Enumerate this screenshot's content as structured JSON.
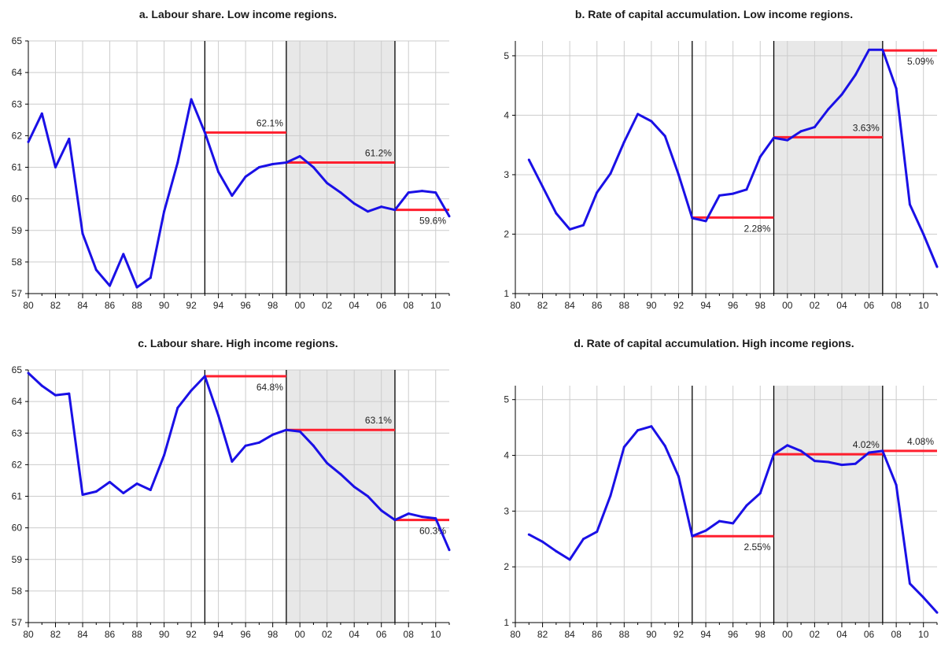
{
  "colors": {
    "line": "#1a10e6",
    "mean": "#ff1f2e",
    "shade": "#e8e8e8",
    "grid": "#cccccc",
    "axis": "#000000"
  },
  "x_tick_labels": [
    "80",
    "82",
    "84",
    "86",
    "88",
    "90",
    "92",
    "94",
    "96",
    "98",
    "00",
    "02",
    "04",
    "06",
    "08",
    "10"
  ],
  "chart_data": [
    {
      "type": "line",
      "title": "a. Labour share. Low income regions.",
      "xlim": [
        1980,
        2011
      ],
      "ylim": [
        57,
        65
      ],
      "yticks": [
        57,
        58,
        59,
        60,
        61,
        62,
        63,
        64,
        65
      ],
      "x": [
        1980,
        1981,
        1982,
        1983,
        1984,
        1985,
        1986,
        1987,
        1988,
        1989,
        1990,
        1991,
        1992,
        1993,
        1994,
        1995,
        1996,
        1997,
        1998,
        1999,
        2000,
        2001,
        2002,
        2003,
        2004,
        2005,
        2006,
        2007,
        2008,
        2009,
        2010,
        2011
      ],
      "values": [
        61.8,
        62.7,
        61.0,
        61.9,
        58.9,
        57.75,
        57.25,
        58.25,
        57.2,
        57.5,
        59.6,
        61.15,
        63.15,
        62.1,
        60.85,
        60.1,
        60.7,
        61.0,
        61.1,
        61.15,
        61.35,
        61.0,
        60.5,
        60.2,
        59.85,
        59.6,
        59.75,
        59.65,
        60.2,
        60.25,
        60.2,
        59.45
      ],
      "vlines": [
        1993,
        1999,
        2007
      ],
      "shaded": [
        1999,
        2007
      ],
      "means": [
        {
          "x0": 1993,
          "x1": 1999,
          "y": 62.1,
          "label": "62.1%",
          "label_pos": "above"
        },
        {
          "x0": 1999,
          "x1": 2007,
          "y": 61.15,
          "label": "61.2%",
          "label_pos": "above"
        },
        {
          "x0": 2007,
          "x1": 2011,
          "y": 59.65,
          "label": "59.6%",
          "label_pos": "below"
        }
      ],
      "grid": true
    },
    {
      "type": "line",
      "title": "b. Rate of capital accumulation. Low income regions.",
      "xlim": [
        1980,
        2011
      ],
      "ylim": [
        1,
        5.25
      ],
      "yticks": [
        1,
        2,
        3,
        4,
        5
      ],
      "x": [
        1981,
        1982,
        1983,
        1984,
        1985,
        1986,
        1987,
        1988,
        1989,
        1990,
        1991,
        1992,
        1993,
        1994,
        1995,
        1996,
        1997,
        1998,
        1999,
        2000,
        2001,
        2002,
        2003,
        2004,
        2005,
        2006,
        2007,
        2008,
        2009,
        2010,
        2011
      ],
      "values": [
        3.25,
        2.8,
        2.35,
        2.08,
        2.15,
        2.7,
        3.02,
        3.55,
        4.02,
        3.9,
        3.65,
        3.0,
        2.27,
        2.22,
        2.65,
        2.68,
        2.75,
        3.3,
        3.62,
        3.58,
        3.73,
        3.8,
        4.1,
        4.35,
        4.68,
        5.1,
        5.1,
        4.45,
        2.5,
        2.0,
        1.45
      ],
      "vlines": [
        1993,
        1999,
        2007
      ],
      "shaded": [
        1999,
        2007
      ],
      "means": [
        {
          "x0": 1993,
          "x1": 1999,
          "y": 2.28,
          "label": "2.28%",
          "label_pos": "below"
        },
        {
          "x0": 1999,
          "x1": 2007,
          "y": 3.63,
          "label": "3.63%",
          "label_pos": "above"
        },
        {
          "x0": 2007,
          "x1": 2011,
          "y": 5.09,
          "label": "5.09%",
          "label_pos": "below"
        }
      ],
      "grid": true
    },
    {
      "type": "line",
      "title": "c. Labour share. High income regions.",
      "xlim": [
        1980,
        2011
      ],
      "ylim": [
        57,
        65
      ],
      "yticks": [
        57,
        58,
        59,
        60,
        61,
        62,
        63,
        64,
        65
      ],
      "x": [
        1980,
        1981,
        1982,
        1983,
        1984,
        1985,
        1986,
        1987,
        1988,
        1989,
        1990,
        1991,
        1992,
        1993,
        1994,
        1995,
        1996,
        1997,
        1998,
        1999,
        2000,
        2001,
        2002,
        2003,
        2004,
        2005,
        2006,
        2007,
        2008,
        2009,
        2010,
        2011
      ],
      "values": [
        64.9,
        64.5,
        64.2,
        64.25,
        61.05,
        61.15,
        61.45,
        61.1,
        61.4,
        61.2,
        62.3,
        63.8,
        64.35,
        64.8,
        63.55,
        62.1,
        62.6,
        62.7,
        62.95,
        63.1,
        63.05,
        62.6,
        62.05,
        61.7,
        61.3,
        61.0,
        60.55,
        60.25,
        60.45,
        60.35,
        60.3,
        59.3
      ],
      "vlines": [
        1993,
        1999,
        2007
      ],
      "shaded": [
        1999,
        2007
      ],
      "means": [
        {
          "x0": 1993,
          "x1": 1999,
          "y": 64.8,
          "label": "64.8%",
          "label_pos": "below"
        },
        {
          "x0": 1999,
          "x1": 2007,
          "y": 63.1,
          "label": "63.1%",
          "label_pos": "above"
        },
        {
          "x0": 2007,
          "x1": 2011,
          "y": 60.25,
          "label": "60.3%",
          "label_pos": "below"
        }
      ],
      "grid": true
    },
    {
      "type": "line",
      "title": "d. Rate of capital accumulation. High income regions.",
      "xlim": [
        1980,
        2011
      ],
      "ylim": [
        1,
        5.25
      ],
      "yticks": [
        1,
        2,
        3,
        4,
        5
      ],
      "x": [
        1981,
        1982,
        1983,
        1984,
        1985,
        1986,
        1987,
        1988,
        1989,
        1990,
        1991,
        1992,
        1993,
        1994,
        1995,
        1996,
        1997,
        1998,
        1999,
        2000,
        2001,
        2002,
        2003,
        2004,
        2005,
        2006,
        2007,
        2008,
        2009,
        2010,
        2011
      ],
      "values": [
        2.58,
        2.45,
        2.28,
        2.13,
        2.5,
        2.63,
        3.28,
        4.15,
        4.45,
        4.52,
        4.17,
        3.62,
        2.55,
        2.65,
        2.82,
        2.78,
        3.1,
        3.32,
        4.02,
        4.18,
        4.08,
        3.9,
        3.88,
        3.83,
        3.85,
        4.05,
        4.08,
        3.47,
        1.7,
        1.45,
        1.18
      ],
      "vlines": [
        1993,
        1999,
        2007
      ],
      "shaded": [
        1999,
        2007
      ],
      "means": [
        {
          "x0": 1993,
          "x1": 1999,
          "y": 2.55,
          "label": "2.55%",
          "label_pos": "below"
        },
        {
          "x0": 1999,
          "x1": 2007,
          "y": 4.02,
          "label": "4.02%",
          "label_pos": "above"
        },
        {
          "x0": 2007,
          "x1": 2011,
          "y": 4.08,
          "label": "4.08%",
          "label_pos": "above"
        }
      ],
      "grid": true
    }
  ]
}
